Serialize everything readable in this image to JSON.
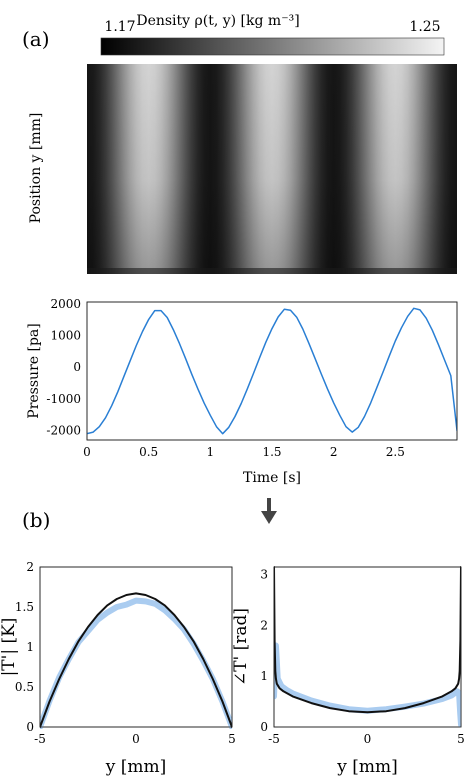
{
  "panel_labels": {
    "a": "(a)",
    "b": "(b)"
  },
  "colorbar": {
    "label": "Density ρ(t, y) [kg m⁻³]",
    "min_label": "1.17",
    "max_label": "1.25"
  },
  "heatmap": {
    "ylabel": "Position y [mm]"
  },
  "arrow_icon": "down-arrow-icon",
  "chart_data": [
    {
      "type": "heatmap",
      "title": "",
      "xlabel": "",
      "ylabel": "Position y [mm]",
      "colorbar_range": [
        1.17,
        1.25
      ],
      "colormap": "gray",
      "x_range": [
        0,
        3
      ],
      "dark_bands_at_t": [
        0,
        1,
        2,
        3
      ],
      "bright_bands_at_t": [
        0.5,
        1.5,
        2.5
      ]
    },
    {
      "type": "line",
      "xlabel": "Time [s]",
      "ylabel": "Pressure [pa]",
      "xlim": [
        0,
        3
      ],
      "ylim": [
        -2300,
        2050
      ],
      "xticks": [
        "0",
        "0.5",
        "1",
        "1.5",
        "2",
        "2.5"
      ],
      "yticks": [
        "2000",
        "1000",
        "0",
        "-1000",
        "-2000"
      ],
      "grid": true,
      "series": [
        {
          "color": "#2a7fd4",
          "x": [
            0,
            0.05,
            0.1,
            0.15,
            0.2,
            0.25,
            0.3,
            0.35,
            0.4,
            0.45,
            0.5,
            0.55,
            0.6,
            0.65,
            0.7,
            0.75,
            0.8,
            0.85,
            0.9,
            0.95,
            1.0,
            1.05,
            1.1,
            1.15,
            1.2,
            1.25,
            1.3,
            1.35,
            1.4,
            1.45,
            1.5,
            1.55,
            1.6,
            1.65,
            1.7,
            1.75,
            1.8,
            1.85,
            1.9,
            1.95,
            2.0,
            2.05,
            2.1,
            2.15,
            2.2,
            2.25,
            2.3,
            2.35,
            2.4,
            2.45,
            2.5,
            2.55,
            2.6,
            2.65,
            2.7,
            2.75,
            2.8,
            2.85,
            2.9,
            2.95,
            3.0
          ],
          "y": [
            -2100,
            -2050,
            -1880,
            -1600,
            -1220,
            -780,
            -290,
            200,
            680,
            1120,
            1500,
            1780,
            1780,
            1560,
            1180,
            740,
            260,
            -230,
            -700,
            -1140,
            -1520,
            -1880,
            -2100,
            -1900,
            -1560,
            -1150,
            -690,
            -200,
            300,
            780,
            1210,
            1580,
            1820,
            1790,
            1570,
            1200,
            740,
            260,
            -220,
            -690,
            -1130,
            -1520,
            -1880,
            -2050,
            -1900,
            -1560,
            -1130,
            -650,
            -160,
            340,
            820,
            1240,
            1600,
            1850,
            1800,
            1540,
            1160,
            700,
            210,
            -270,
            -2000
          ]
        }
      ]
    },
    {
      "type": "line",
      "xlabel": "y [mm]",
      "ylabel": "|T'| [K]",
      "xlim": [
        -5,
        5
      ],
      "ylim": [
        0,
        2
      ],
      "xticks": [
        "-5",
        "0",
        "5"
      ],
      "yticks": [
        "0",
        "0.5",
        "1",
        "1.5",
        "2"
      ],
      "series": [
        {
          "style": "measured (light blue band)",
          "color": "#aaccf0",
          "x": [
            -5,
            -4.5,
            -4,
            -3.5,
            -3,
            -2.5,
            -2,
            -1.5,
            -1,
            -0.5,
            0,
            0.5,
            1,
            1.5,
            2,
            2.5,
            3,
            3.5,
            4,
            4.5,
            5
          ],
          "y": [
            0,
            0.33,
            0.62,
            0.85,
            1.06,
            1.2,
            1.34,
            1.43,
            1.5,
            1.53,
            1.58,
            1.57,
            1.54,
            1.46,
            1.35,
            1.22,
            1.04,
            0.83,
            0.6,
            0.32,
            0
          ]
        },
        {
          "style": "model (black)",
          "color": "#111111",
          "x": [
            -5,
            -4.5,
            -4,
            -3.5,
            -3,
            -2.5,
            -2,
            -1.5,
            -1,
            -0.5,
            0,
            0.5,
            1,
            1.5,
            2,
            2.5,
            3,
            3.5,
            4,
            4.5,
            5
          ],
          "y": [
            0,
            0.32,
            0.6,
            0.85,
            1.07,
            1.25,
            1.4,
            1.52,
            1.6,
            1.65,
            1.67,
            1.65,
            1.6,
            1.52,
            1.4,
            1.25,
            1.07,
            0.85,
            0.6,
            0.32,
            0
          ]
        }
      ]
    },
    {
      "type": "line",
      "xlabel": "y [mm]",
      "ylabel": "∠T' [rad]",
      "xlim": [
        -5,
        5
      ],
      "ylim": [
        0,
        3.14
      ],
      "xticks": [
        "-5",
        "0",
        "5"
      ],
      "yticks": [
        "0",
        "1",
        "2",
        "3"
      ],
      "series": [
        {
          "style": "measured (light blue band)",
          "color": "#aaccf0",
          "x": [
            -5,
            -4.95,
            -4.9,
            -4.85,
            -4.8,
            -4.6,
            -4.3,
            -4,
            -3,
            -2,
            -1,
            0,
            1,
            2,
            3,
            4,
            4.5,
            4.8,
            4.9,
            4.95,
            5
          ],
          "y": [
            0.6,
            1.1,
            1.6,
            1.3,
            0.95,
            0.8,
            0.72,
            0.66,
            0.52,
            0.42,
            0.35,
            0.32,
            0.35,
            0.4,
            0.46,
            0.55,
            0.62,
            0.7,
            0.65,
            0.3,
            0.05
          ]
        },
        {
          "style": "model (black)",
          "color": "#111111",
          "x": [
            -5,
            -4.97,
            -4.93,
            -4.9,
            -4.85,
            -4.7,
            -4.5,
            -4,
            -3,
            -2,
            -1,
            0,
            1,
            2,
            3,
            4,
            4.5,
            4.7,
            4.85,
            4.9,
            4.93,
            4.97,
            5
          ],
          "y": [
            3.14,
            1.7,
            1.1,
            0.95,
            0.85,
            0.76,
            0.7,
            0.6,
            0.47,
            0.37,
            0.31,
            0.29,
            0.31,
            0.37,
            0.47,
            0.6,
            0.7,
            0.76,
            0.85,
            0.95,
            1.1,
            1.7,
            3.14
          ]
        }
      ]
    }
  ]
}
